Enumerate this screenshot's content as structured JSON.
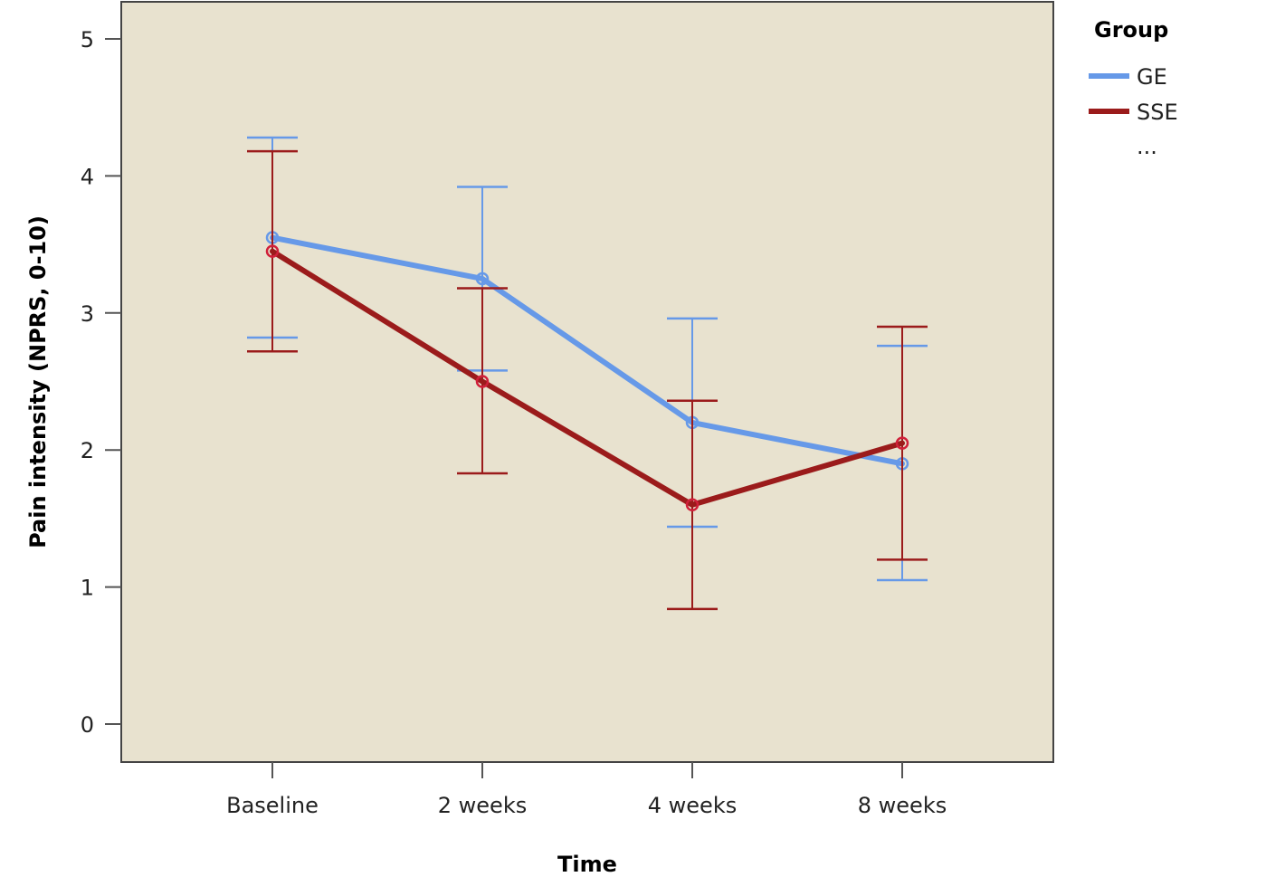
{
  "chart_data": {
    "type": "line",
    "categories": [
      "Baseline",
      "2 weeks",
      "4 weeks",
      "8 weeks"
    ],
    "xlabel": "Time",
    "ylabel": "Pain intensity (NPRS, 0-10)",
    "ylim": [
      0,
      5
    ],
    "yticks": [
      "0",
      "1",
      "2",
      "3",
      "4",
      "5"
    ],
    "legend": {
      "title": "Group",
      "position": "top-right",
      "more": "..."
    },
    "plot_background": "#e8e2cf",
    "series": [
      {
        "name": "GE",
        "color": "#6699e8",
        "values": [
          3.55,
          3.25,
          2.2,
          1.9
        ],
        "lower": [
          2.82,
          2.58,
          1.44,
          1.05
        ],
        "upper": [
          4.28,
          3.92,
          2.96,
          2.76
        ]
      },
      {
        "name": "SSE",
        "color": "#9b1b1b",
        "marker_color": "#d0203a",
        "values": [
          3.45,
          2.5,
          1.6,
          2.05
        ],
        "lower": [
          2.72,
          1.83,
          0.84,
          1.2
        ],
        "upper": [
          4.18,
          3.18,
          2.36,
          2.9
        ]
      }
    ]
  }
}
